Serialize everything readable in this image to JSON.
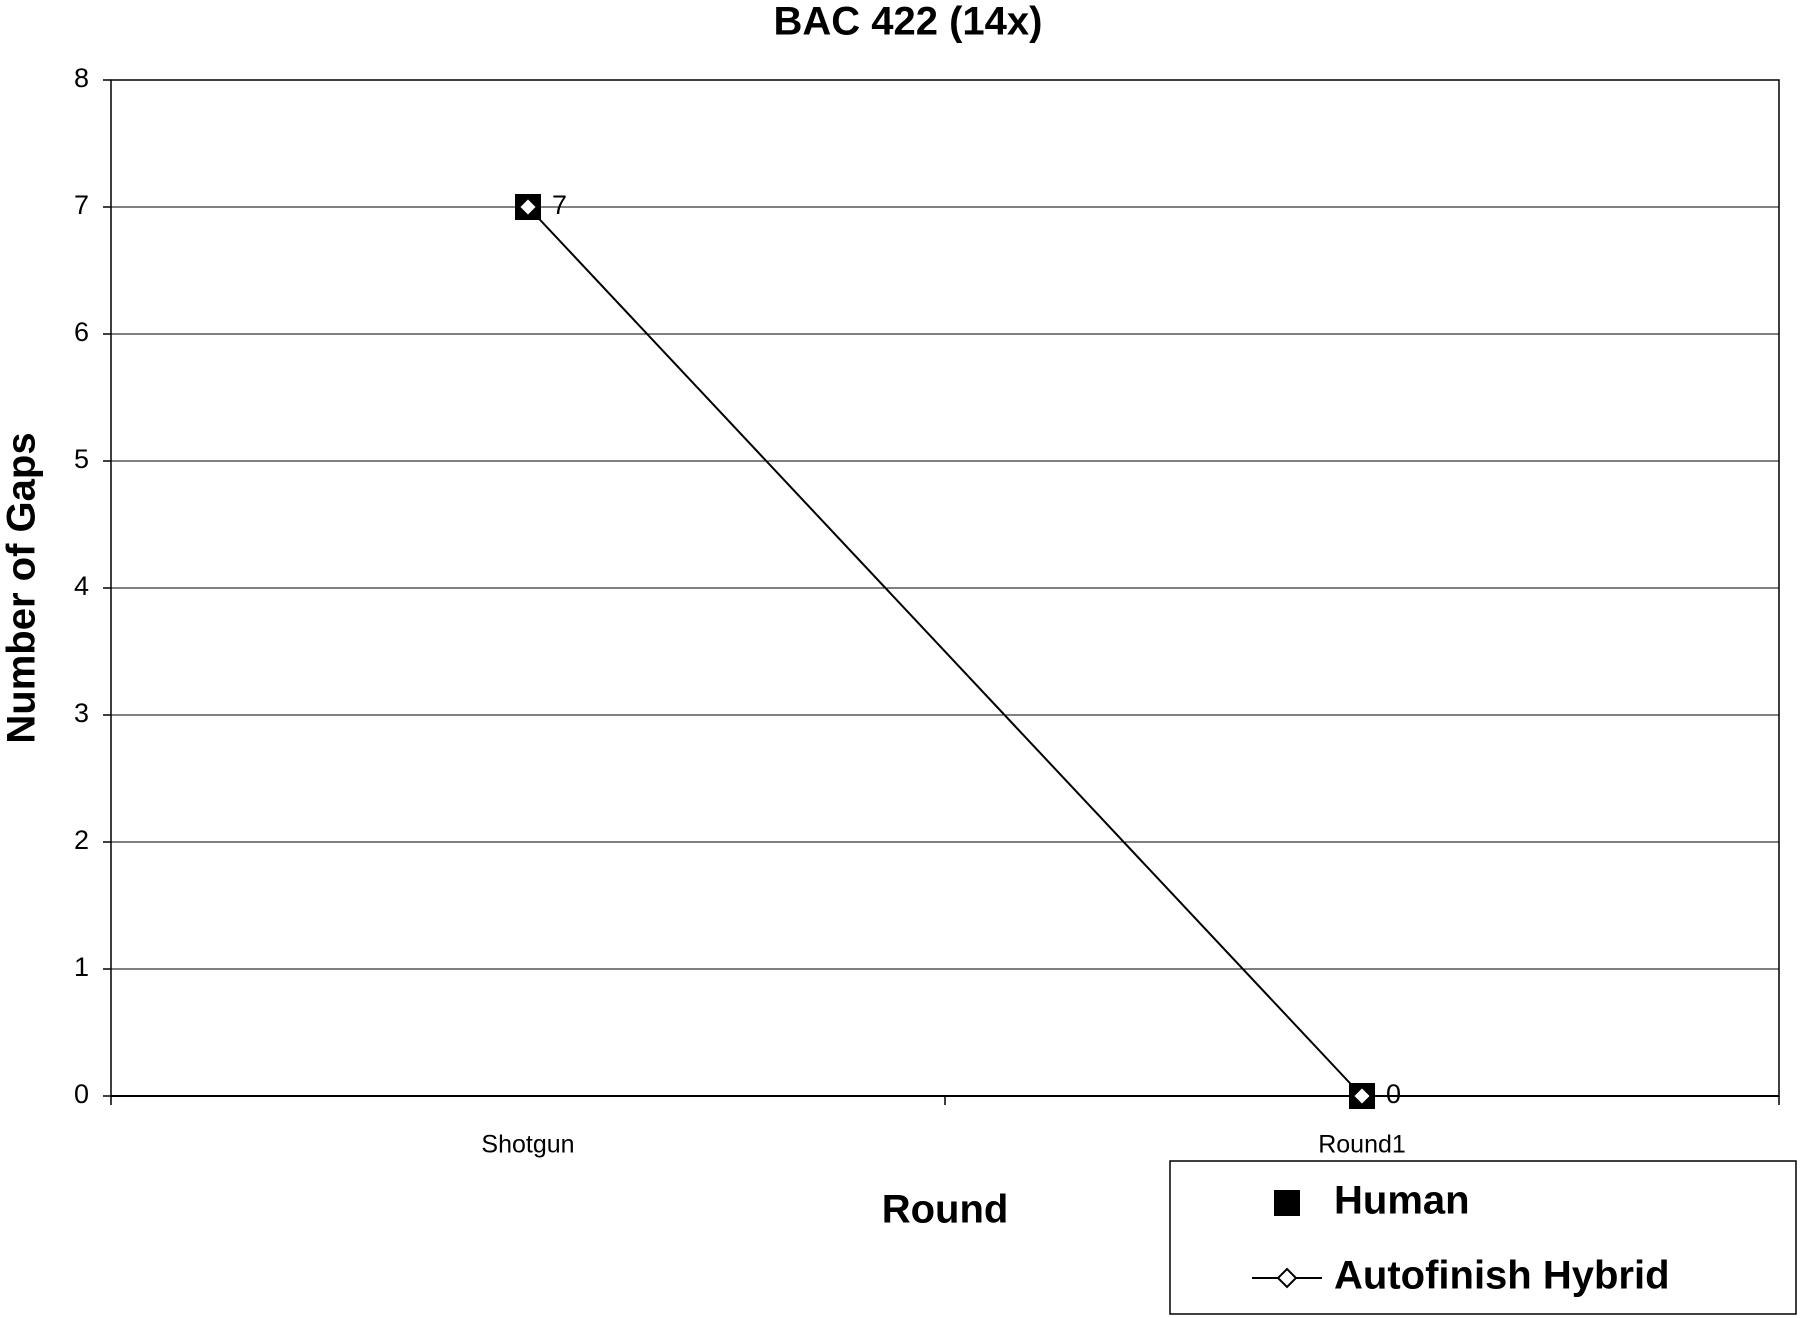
{
  "chart_data": {
    "type": "line",
    "title": "BAC 422 (14x)",
    "x_label": "Round",
    "y_label": "Number of Gaps",
    "categories": [
      "Shotgun",
      "Round1"
    ],
    "series": [
      {
        "name": "Human",
        "color": "#000000",
        "marker": "square",
        "line": false,
        "values": [
          7,
          0
        ]
      },
      {
        "name": "Autofinish Hybrid",
        "color": "#000000",
        "marker": "diamond",
        "line": true,
        "values": [
          7,
          0
        ]
      }
    ],
    "ylim": [
      0,
      8
    ],
    "yticks": [
      0,
      1,
      2,
      3,
      4,
      5,
      6,
      7,
      8
    ],
    "grid": true
  }
}
